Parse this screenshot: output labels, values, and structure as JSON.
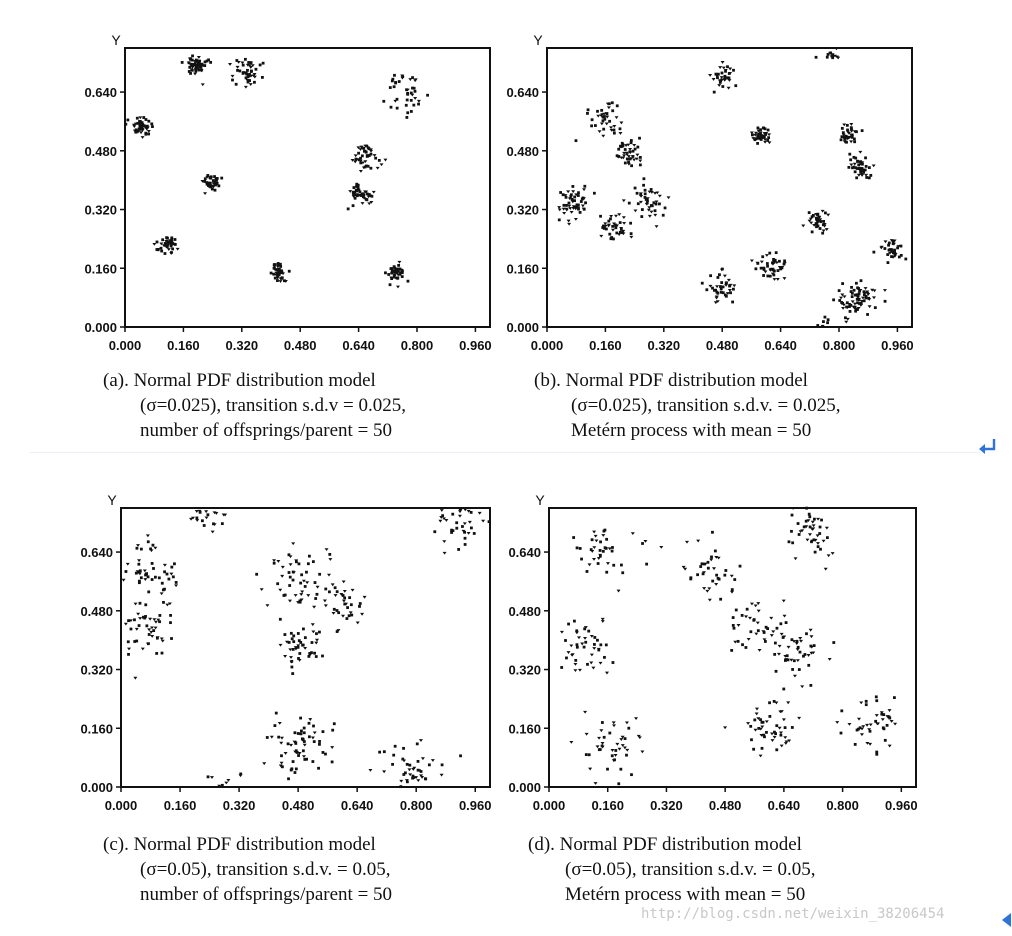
{
  "chart_data": [
    {
      "type": "scatter",
      "id": "a",
      "ylabel": "Y",
      "xticks": [
        "0.000",
        "0.160",
        "0.320",
        "0.480",
        "0.640",
        "0.800",
        "0.960"
      ],
      "yticks": [
        "0.000",
        "0.160",
        "0.320",
        "0.480",
        "0.640"
      ],
      "xlim": [
        0,
        1.0
      ],
      "ylim": [
        0,
        0.76
      ],
      "caption": [
        "(a). Normal PDF distribution model",
        "(σ=0.025), transition s.d.v = 0.025,",
        "number of offsprings/parent = 50"
      ],
      "clusters": [
        {
          "x": 0.045,
          "y": 0.545,
          "sd": 0.013,
          "n": 50
        },
        {
          "x": 0.195,
          "y": 0.71,
          "sd": 0.014,
          "n": 55
        },
        {
          "x": 0.33,
          "y": 0.695,
          "sd": 0.02,
          "n": 45
        },
        {
          "x": 0.77,
          "y": 0.635,
          "sd": 0.028,
          "n": 40
        },
        {
          "x": 0.66,
          "y": 0.465,
          "sd": 0.018,
          "n": 45
        },
        {
          "x": 0.235,
          "y": 0.395,
          "sd": 0.011,
          "n": 40
        },
        {
          "x": 0.64,
          "y": 0.36,
          "sd": 0.017,
          "n": 45
        },
        {
          "x": 0.115,
          "y": 0.225,
          "sd": 0.014,
          "n": 45
        },
        {
          "x": 0.42,
          "y": 0.15,
          "sd": 0.012,
          "n": 45
        },
        {
          "x": 0.74,
          "y": 0.15,
          "sd": 0.012,
          "n": 45
        }
      ]
    },
    {
      "type": "scatter",
      "id": "b",
      "ylabel": "Y",
      "xticks": [
        "0.000",
        "0.160",
        "0.320",
        "0.480",
        "0.640",
        "0.800",
        "0.960"
      ],
      "yticks": [
        "0.000",
        "0.160",
        "0.320",
        "0.480",
        "0.640"
      ],
      "xlim": [
        0,
        1.0
      ],
      "ylim": [
        0,
        0.76
      ],
      "caption": [
        "(b). Normal PDF distribution model",
        "(σ=0.025), transition s.d.v. = 0.025,",
        "Metérn process with mean = 50"
      ],
      "clusters": [
        {
          "x": 0.485,
          "y": 0.685,
          "sd": 0.015,
          "n": 35
        },
        {
          "x": 0.775,
          "y": 0.75,
          "sd": 0.015,
          "n": 15
        },
        {
          "x": 0.16,
          "y": 0.565,
          "sd": 0.025,
          "n": 40
        },
        {
          "x": 0.59,
          "y": 0.52,
          "sd": 0.013,
          "n": 40
        },
        {
          "x": 0.83,
          "y": 0.52,
          "sd": 0.014,
          "n": 35
        },
        {
          "x": 0.225,
          "y": 0.47,
          "sd": 0.02,
          "n": 45
        },
        {
          "x": 0.855,
          "y": 0.435,
          "sd": 0.017,
          "n": 45
        },
        {
          "x": 0.075,
          "y": 0.34,
          "sd": 0.022,
          "n": 55
        },
        {
          "x": 0.28,
          "y": 0.345,
          "sd": 0.022,
          "n": 45
        },
        {
          "x": 0.185,
          "y": 0.27,
          "sd": 0.018,
          "n": 40
        },
        {
          "x": 0.745,
          "y": 0.285,
          "sd": 0.017,
          "n": 40
        },
        {
          "x": 0.62,
          "y": 0.165,
          "sd": 0.02,
          "n": 45
        },
        {
          "x": 0.945,
          "y": 0.205,
          "sd": 0.018,
          "n": 35
        },
        {
          "x": 0.475,
          "y": 0.11,
          "sd": 0.02,
          "n": 40
        },
        {
          "x": 0.85,
          "y": 0.075,
          "sd": 0.026,
          "n": 75
        },
        {
          "x": 0.76,
          "y": 0.01,
          "sd": 0.012,
          "n": 10
        }
      ]
    },
    {
      "type": "scatter",
      "id": "c",
      "ylabel": "Y",
      "xticks": [
        "0.000",
        "0.160",
        "0.320",
        "0.480",
        "0.640",
        "0.800",
        "0.960"
      ],
      "yticks": [
        "0.000",
        "0.160",
        "0.320",
        "0.480",
        "0.640"
      ],
      "xlim": [
        0,
        1.0
      ],
      "ylim": [
        0,
        0.76
      ],
      "caption": [
        "(c). Normal PDF distribution model",
        "(σ=0.05), transition s.d.v. = 0.05,",
        "number of offsprings/parent = 50"
      ],
      "clusters": [
        {
          "x": 0.24,
          "y": 0.745,
          "sd": 0.03,
          "n": 25
        },
        {
          "x": 0.92,
          "y": 0.715,
          "sd": 0.035,
          "n": 40
        },
        {
          "x": 0.08,
          "y": 0.58,
          "sd": 0.04,
          "n": 50
        },
        {
          "x": 0.48,
          "y": 0.57,
          "sd": 0.045,
          "n": 55
        },
        {
          "x": 0.6,
          "y": 0.5,
          "sd": 0.03,
          "n": 35
        },
        {
          "x": 0.08,
          "y": 0.43,
          "sd": 0.04,
          "n": 50
        },
        {
          "x": 0.49,
          "y": 0.38,
          "sd": 0.035,
          "n": 45
        },
        {
          "x": 0.48,
          "y": 0.11,
          "sd": 0.045,
          "n": 65
        },
        {
          "x": 0.79,
          "y": 0.045,
          "sd": 0.04,
          "n": 45
        },
        {
          "x": 0.28,
          "y": 0.01,
          "sd": 0.02,
          "n": 10
        }
      ]
    },
    {
      "type": "scatter",
      "id": "d",
      "ylabel": "Y",
      "xticks": [
        "0.000",
        "0.160",
        "0.320",
        "0.480",
        "0.640",
        "0.800",
        "0.960"
      ],
      "yticks": [
        "0.000",
        "0.160",
        "0.320",
        "0.480",
        "0.640"
      ],
      "xlim": [
        0,
        1.0
      ],
      "ylim": [
        0,
        0.76
      ],
      "caption": [
        "(d). Normal PDF distribution model",
        "(σ=0.05), transition s.d.v. = 0.05,",
        "Metérn process with mean = 50"
      ],
      "clusters": [
        {
          "x": 0.72,
          "y": 0.69,
          "sd": 0.035,
          "n": 45
        },
        {
          "x": 0.16,
          "y": 0.64,
          "sd": 0.04,
          "n": 40
        },
        {
          "x": 0.44,
          "y": 0.59,
          "sd": 0.04,
          "n": 40
        },
        {
          "x": 0.56,
          "y": 0.43,
          "sd": 0.04,
          "n": 40
        },
        {
          "x": 0.69,
          "y": 0.37,
          "sd": 0.04,
          "n": 45
        },
        {
          "x": 0.1,
          "y": 0.38,
          "sd": 0.035,
          "n": 45
        },
        {
          "x": 0.6,
          "y": 0.16,
          "sd": 0.04,
          "n": 50
        },
        {
          "x": 0.88,
          "y": 0.18,
          "sd": 0.035,
          "n": 45
        },
        {
          "x": 0.17,
          "y": 0.11,
          "sd": 0.04,
          "n": 45
        }
      ]
    }
  ],
  "watermark": "http://blog.csdn.net/weixin_38206454"
}
